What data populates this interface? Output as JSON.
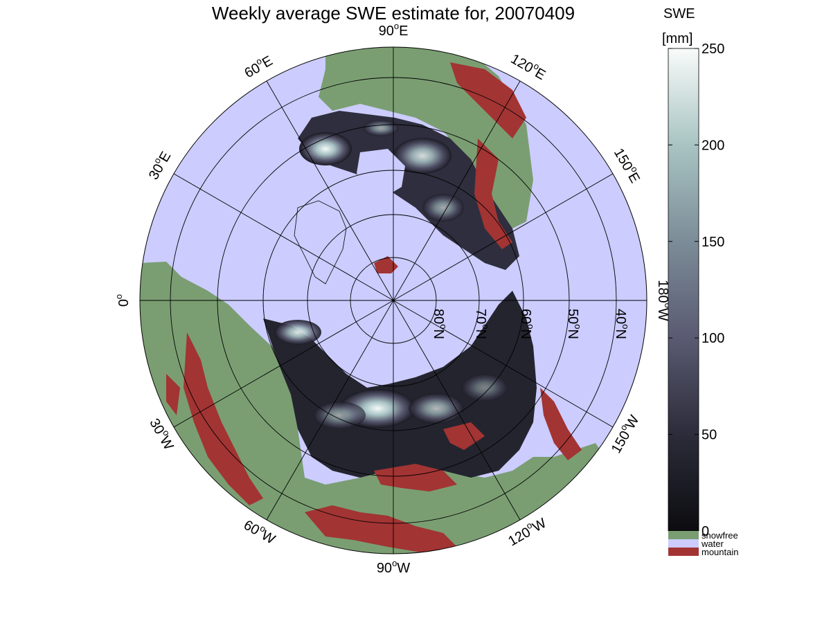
{
  "title": "Weekly average SWE estimate for, 20070409",
  "map": {
    "projection": "north polar stereographic",
    "center": "North Pole",
    "outer_latitude": "approx. 30N",
    "longitude_labels": [
      {
        "label": "90",
        "deg": "o",
        "hemi": "W",
        "lon": -90
      },
      {
        "label": "120",
        "deg": "o",
        "hemi": "W",
        "lon": -120
      },
      {
        "label": "150",
        "deg": "o",
        "hemi": "W",
        "lon": -150
      },
      {
        "label": "180",
        "deg": "o",
        "hemi": "W",
        "lon": 180
      },
      {
        "label": "150",
        "deg": "o",
        "hemi": "E",
        "lon": 150
      },
      {
        "label": "120",
        "deg": "o",
        "hemi": "E",
        "lon": 120
      },
      {
        "label": "90",
        "deg": "o",
        "hemi": "E",
        "lon": 90
      },
      {
        "label": "60",
        "deg": "o",
        "hemi": "E",
        "lon": 60
      },
      {
        "label": "30",
        "deg": "o",
        "hemi": "E",
        "lon": 30
      },
      {
        "label": "0",
        "deg": "o",
        "hemi": "",
        "lon": 0
      },
      {
        "label": "30",
        "deg": "o",
        "hemi": "W",
        "lon": -30
      },
      {
        "label": "60",
        "deg": "o",
        "hemi": "W",
        "lon": -60
      }
    ],
    "latitude_labels": [
      {
        "label": "80",
        "deg": "o",
        "hemi": "N",
        "lat": 80
      },
      {
        "label": "70",
        "deg": "o",
        "hemi": "N",
        "lat": 70
      },
      {
        "label": "60",
        "deg": "o",
        "hemi": "N",
        "lat": 60
      },
      {
        "label": "50",
        "deg": "o",
        "hemi": "N",
        "lat": 50
      },
      {
        "label": "40",
        "deg": "o",
        "hemi": "N",
        "lat": 40
      }
    ],
    "colors": {
      "water": "#ccccff",
      "snowfree": "#7a9e72",
      "mountain": "#a23433",
      "swe_low": "#101018",
      "swe_mid": "#62627a",
      "swe_high": "#f2f8f6"
    }
  },
  "colorbar": {
    "title": "SWE",
    "unit": "[mm]",
    "ticks": [
      0,
      50,
      100,
      150,
      200,
      250
    ],
    "range": [
      0,
      250
    ],
    "legend": [
      {
        "label": "snowfree",
        "color": "#7a9e72"
      },
      {
        "label": "water",
        "color": "#ccccff"
      },
      {
        "label": "mountain",
        "color": "#a23433"
      }
    ]
  }
}
